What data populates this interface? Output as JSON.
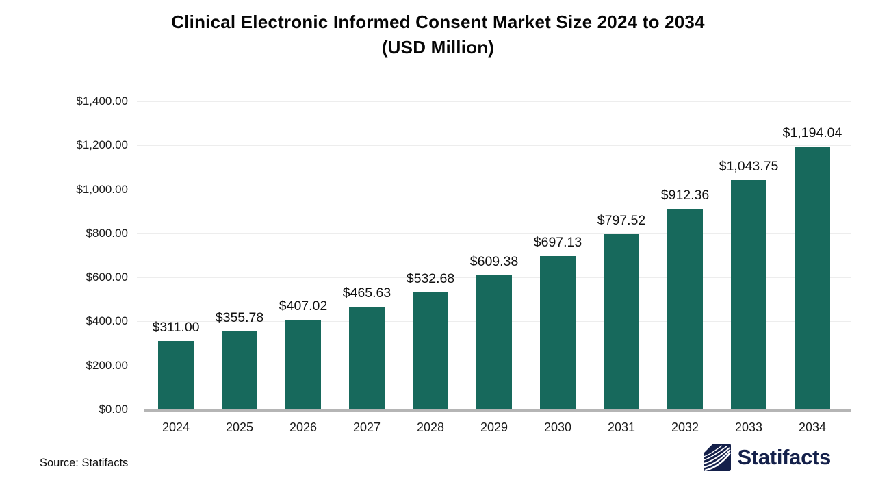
{
  "title": {
    "line1": "Clinical Electronic Informed Consent Market Size 2024 to 2034",
    "line2": "(USD Million)"
  },
  "chart_data": {
    "type": "bar",
    "title": "Clinical Electronic Informed Consent Market Size 2024 to 2034 (USD Million)",
    "categories": [
      "2024",
      "2025",
      "2026",
      "2027",
      "2028",
      "2029",
      "2030",
      "2031",
      "2032",
      "2033",
      "2034"
    ],
    "values": [
      311.0,
      355.78,
      407.02,
      465.63,
      532.68,
      609.38,
      697.13,
      797.52,
      912.36,
      1043.75,
      1194.04
    ],
    "value_labels": [
      "$311.00",
      "$355.78",
      "$407.02",
      "$465.63",
      "$532.68",
      "$609.38",
      "$697.13",
      "$797.52",
      "$912.36",
      "$1,043.75",
      "$1,194.04"
    ],
    "xlabel": "",
    "ylabel": "",
    "ylim": [
      0,
      1400
    ],
    "y_tick_step": 200,
    "y_tick_labels": [
      "$0.00",
      "$200.00",
      "$400.00",
      "$600.00",
      "$800.00",
      "$1,000.00",
      "$1,200.00",
      "$1,400.00"
    ],
    "grid": true,
    "legend_position": "none",
    "bar_color": "#17695c"
  },
  "footer": {
    "source": "Source: Statifacts",
    "logo_text": "Statifacts"
  },
  "colors": {
    "bar": "#17695c",
    "gridline": "#ededed",
    "axis_line": "#b5b5b5",
    "title_text": "#060606",
    "logo_navy": "#14204a"
  }
}
